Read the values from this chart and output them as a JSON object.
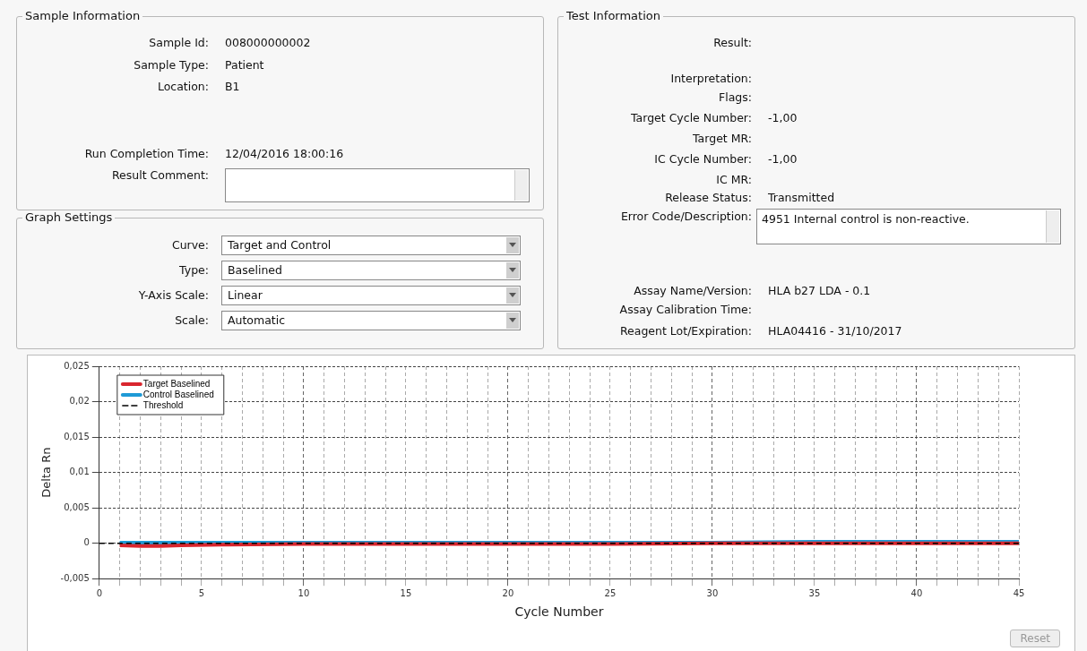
{
  "chart_data": [
    {
      "type": "other",
      "title": "Sample Information",
      "annotations": [
        "Sample Id: 008000000002",
        "Sample Type: Patient",
        "Location: B1",
        "Run Completion Time: 12/04/2016 18:00:16",
        "Result Comment:"
      ]
    },
    {
      "type": "other",
      "title": "Graph Settings",
      "annotations": [
        "Curve: Target and Control",
        "Type: Baselined",
        "Y-Axis Scale: Linear",
        "Scale: Automatic"
      ]
    },
    {
      "type": "other",
      "title": "Test Information",
      "annotations": [
        "Result:",
        "Interpretation:",
        "Flags:",
        "Target Cycle Number: -1,00",
        "Target MR:",
        "IC Cycle Number: -1,00",
        "IC MR:",
        "Release Status: Transmitted",
        "Error Code/Description: 4951 Internal control is non-reactive.",
        "Assay Name/Version: HLA b27 LDA - 0.1",
        "Assay Calibration Time:",
        "Reagent Lot/Expiration: HLA04416 - 31/10/2017"
      ]
    },
    {
      "type": "line",
      "xlabel": "Cycle Number",
      "ylabel": "Delta Rn",
      "annotations": [
        "Reset"
      ],
      "series": [
        {
          "name": "Target Baselined",
          "color": "#d9262e",
          "x": [
            1,
            2,
            3,
            4,
            6,
            10,
            15,
            20,
            25,
            30,
            35,
            40,
            45
          ],
          "values": [
            -0.0003,
            -0.0004,
            -0.0004,
            -0.0003,
            -0.0002,
            -0.0001,
            -0.0001,
            -0.0001,
            -0.0001,
            0,
            0,
            0,
            0
          ]
        },
        {
          "name": "Control Baselined",
          "color": "#1e9ad6",
          "x": [
            1,
            5,
            10,
            15,
            20,
            25,
            30,
            35,
            40,
            45
          ],
          "values": [
            0.0001,
            0.0001,
            0.0001,
            0.0001,
            0.0001,
            0.0001,
            0.0001,
            0.0002,
            0.0002,
            0.0002
          ]
        }
      ],
      "ref_lines": [
        {
          "axis": "y",
          "value": 0,
          "label": "Threshold",
          "color": "#000000",
          "line_style": "dashed"
        }
      ],
      "xlim": [
        0,
        45
      ],
      "ylim": [
        -0.005,
        0.025
      ],
      "xticks": [
        0,
        {
          "value": 1,
          "label": null
        },
        {
          "value": 2,
          "label": null
        },
        {
          "value": 3,
          "label": null
        },
        {
          "value": 4,
          "label": null
        },
        5,
        {
          "value": 6,
          "label": null
        },
        {
          "value": 7,
          "label": null
        },
        {
          "value": 8,
          "label": null
        },
        {
          "value": 9,
          "label": null
        },
        10,
        {
          "value": 11,
          "label": null
        },
        {
          "value": 12,
          "label": null
        },
        {
          "value": 13,
          "label": null
        },
        {
          "value": 14,
          "label": null
        },
        15,
        {
          "value": 16,
          "label": null
        },
        {
          "value": 17,
          "label": null
        },
        {
          "value": 18,
          "label": null
        },
        {
          "value": 19,
          "label": null
        },
        20,
        {
          "value": 21,
          "label": null
        },
        {
          "value": 22,
          "label": null
        },
        {
          "value": 23,
          "label": null
        },
        {
          "value": 24,
          "label": null
        },
        25,
        {
          "value": 26,
          "label": null
        },
        {
          "value": 27,
          "label": null
        },
        {
          "value": 28,
          "label": null
        },
        {
          "value": 29,
          "label": null
        },
        30,
        {
          "value": 31,
          "label": null
        },
        {
          "value": 32,
          "label": null
        },
        {
          "value": 33,
          "label": null
        },
        {
          "value": 34,
          "label": null
        },
        35,
        {
          "value": 36,
          "label": null
        },
        {
          "value": 37,
          "label": null
        },
        {
          "value": 38,
          "label": null
        },
        {
          "value": 39,
          "label": null
        },
        40,
        {
          "value": 41,
          "label": null
        },
        {
          "value": 42,
          "label": null
        },
        {
          "value": 43,
          "label": null
        },
        {
          "value": 44,
          "label": null
        },
        45
      ],
      "yticks": [
        {
          "value": -0.005,
          "label": "-0,005"
        },
        0,
        {
          "value": 0.005,
          "label": "0,005"
        },
        {
          "value": 0.01,
          "label": "0,01"
        },
        {
          "value": 0.015,
          "label": "0,015"
        },
        {
          "value": 0.02,
          "label": "0,02"
        },
        {
          "value": 0.025,
          "label": "0,025"
        }
      ],
      "grid": true,
      "legend": "top left",
      "marker": "none",
      "line_style": "solid"
    }
  ]
}
